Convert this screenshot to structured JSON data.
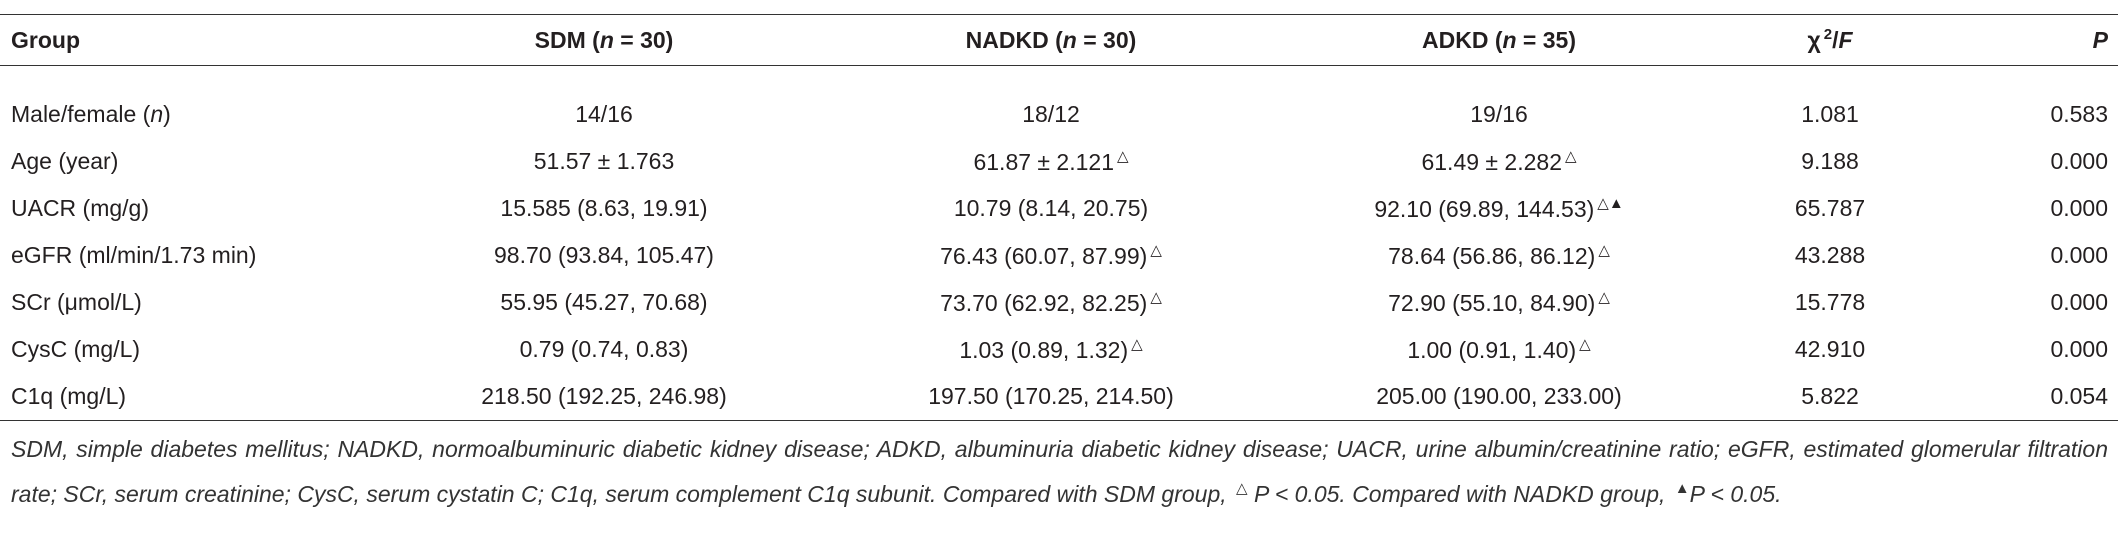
{
  "table": {
    "header": [
      [
        {
          "text": "Group"
        }
      ],
      [
        {
          "text": "SDM ("
        },
        {
          "text": "n",
          "style": "italic"
        },
        {
          "text": " = 30)"
        }
      ],
      [
        {
          "text": "NADKD ("
        },
        {
          "text": "n",
          "style": "italic"
        },
        {
          "text": " = 30)"
        }
      ],
      [
        {
          "text": "ADKD ("
        },
        {
          "text": "n",
          "style": "italic"
        },
        {
          "text": " = 35)"
        }
      ],
      [
        {
          "text": "χ"
        },
        {
          "text": "2",
          "style": "sup"
        },
        {
          "text": "/"
        },
        {
          "text": "F",
          "style": "italic"
        }
      ],
      [
        {
          "text": "P",
          "style": "italic"
        }
      ]
    ],
    "rows": [
      [
        [
          {
            "text": "Male/female ("
          },
          {
            "text": "n",
            "style": "italic"
          },
          {
            "text": ")"
          }
        ],
        [
          {
            "text": "14/16"
          }
        ],
        [
          {
            "text": "18/12"
          }
        ],
        [
          {
            "text": "19/16"
          }
        ],
        [
          {
            "text": "1.081"
          }
        ],
        [
          {
            "text": "0.583"
          }
        ]
      ],
      [
        [
          {
            "text": "Age (year)"
          }
        ],
        [
          {
            "text": "51.57 ± 1.763"
          }
        ],
        [
          {
            "text": "61.87 ± 2.121"
          },
          {
            "text": "△",
            "style": "sup"
          }
        ],
        [
          {
            "text": "61.49 ± 2.282"
          },
          {
            "text": "△",
            "style": "sup"
          }
        ],
        [
          {
            "text": "9.188"
          }
        ],
        [
          {
            "text": "0.000"
          }
        ]
      ],
      [
        [
          {
            "text": "UACR (mg/g)"
          }
        ],
        [
          {
            "text": "15.585 (8.63, 19.91)"
          }
        ],
        [
          {
            "text": "10.79 (8.14, 20.75)"
          }
        ],
        [
          {
            "text": "92.10 (69.89, 144.53)"
          },
          {
            "text": "△▲",
            "style": "sup"
          }
        ],
        [
          {
            "text": "65.787"
          }
        ],
        [
          {
            "text": "0.000"
          }
        ]
      ],
      [
        [
          {
            "text": "eGFR (ml/min/1.73 min)"
          }
        ],
        [
          {
            "text": "98.70 (93.84, 105.47)"
          }
        ],
        [
          {
            "text": "76.43 (60.07, 87.99)"
          },
          {
            "text": "△",
            "style": "sup"
          }
        ],
        [
          {
            "text": "78.64 (56.86, 86.12)"
          },
          {
            "text": "△",
            "style": "sup"
          }
        ],
        [
          {
            "text": "43.288"
          }
        ],
        [
          {
            "text": "0.000"
          }
        ]
      ],
      [
        [
          {
            "text": "SCr (μmol/L)"
          }
        ],
        [
          {
            "text": "55.95 (45.27, 70.68)"
          }
        ],
        [
          {
            "text": "73.70 (62.92, 82.25)"
          },
          {
            "text": "△",
            "style": "sup"
          }
        ],
        [
          {
            "text": "72.90 (55.10, 84.90)"
          },
          {
            "text": "△",
            "style": "sup"
          }
        ],
        [
          {
            "text": "15.778"
          }
        ],
        [
          {
            "text": "0.000"
          }
        ]
      ],
      [
        [
          {
            "text": "CysC (mg/L)"
          }
        ],
        [
          {
            "text": "0.79 (0.74, 0.83)"
          }
        ],
        [
          {
            "text": "1.03 (0.89, 1.32)"
          },
          {
            "text": "△",
            "style": "sup"
          }
        ],
        [
          {
            "text": "1.00 (0.91, 1.40)"
          },
          {
            "text": "△",
            "style": "sup"
          }
        ],
        [
          {
            "text": "42.910"
          }
        ],
        [
          {
            "text": "0.000"
          }
        ]
      ],
      [
        [
          {
            "text": "C1q (mg/L)"
          }
        ],
        [
          {
            "text": "218.50 (192.25, 246.98)"
          }
        ],
        [
          {
            "text": "197.50 (170.25, 214.50)"
          }
        ],
        [
          {
            "text": "205.00 (190.00, 233.00)"
          }
        ],
        [
          {
            "text": "5.822"
          }
        ],
        [
          {
            "text": "0.054"
          }
        ]
      ]
    ]
  },
  "footnote": [
    {
      "text": "SDM, simple diabetes mellitus; NADKD, normoalbuminuric diabetic kidney disease; ADKD, albuminuria diabetic kidney disease; UACR, urine albumin/creatinine ratio; eGFR, estimated glomerular filtration rate; SCr, serum creatinine; CysC, serum cystatin C; C1q, serum complement C1q subunit. Compared with SDM group, ",
      "style": "italic"
    },
    {
      "text": "△",
      "style": "sup"
    },
    {
      "text": " P < 0.05. Compared with NADKD group, ",
      "style": "italic"
    },
    {
      "text": "▲",
      "style": "sup"
    },
    {
      "text": "P < 0.05.",
      "style": "italic"
    }
  ]
}
